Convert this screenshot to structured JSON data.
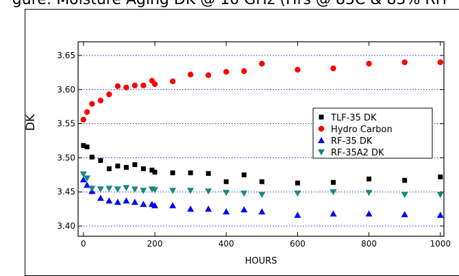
{
  "figure": {
    "title": "gure: Moisture Aging DK @ 10 GHz (Hrs @ 85C & 85% RH"
  },
  "chart_data": {
    "type": "scatter",
    "title": "gure: Moisture Aging DK @ 10 GHz (Hrs @ 85C & 85% RH",
    "xlabel": "HOURS",
    "ylabel": "DK",
    "xlim": [
      -15,
      1010
    ],
    "ylim": [
      3.385,
      3.67
    ],
    "xticks": [
      0,
      200,
      400,
      600,
      800,
      1000
    ],
    "yticks": [
      3.4,
      3.45,
      3.5,
      3.55,
      3.6,
      3.65
    ],
    "ytick_labels": [
      "3.40",
      "3.45",
      "3.50",
      "3.55",
      "3.60",
      "3.65"
    ],
    "grid": "horizontal-dotted",
    "legend_position": "right-center",
    "series": [
      {
        "name": "TLF-35 DK",
        "marker": "square",
        "color": "#000000",
        "points": [
          [
            0,
            3.518
          ],
          [
            10,
            3.516
          ],
          [
            24,
            3.501
          ],
          [
            48,
            3.496
          ],
          [
            72,
            3.484
          ],
          [
            96,
            3.488
          ],
          [
            120,
            3.486
          ],
          [
            144,
            3.49
          ],
          [
            168,
            3.484
          ],
          [
            192,
            3.482
          ],
          [
            200,
            3.479
          ],
          [
            250,
            3.478
          ],
          [
            300,
            3.478
          ],
          [
            350,
            3.477
          ],
          [
            400,
            3.465
          ],
          [
            450,
            3.475
          ],
          [
            500,
            3.465
          ],
          [
            600,
            3.463
          ],
          [
            700,
            3.464
          ],
          [
            800,
            3.469
          ],
          [
            900,
            3.467
          ],
          [
            1000,
            3.472
          ]
        ]
      },
      {
        "name": "Hydro Carbon",
        "marker": "circle",
        "color": "#ff0000",
        "points": [
          [
            0,
            3.556
          ],
          [
            10,
            3.567
          ],
          [
            24,
            3.579
          ],
          [
            48,
            3.584
          ],
          [
            72,
            3.593
          ],
          [
            96,
            3.605
          ],
          [
            120,
            3.603
          ],
          [
            144,
            3.606
          ],
          [
            168,
            3.606
          ],
          [
            192,
            3.613
          ],
          [
            200,
            3.608
          ],
          [
            250,
            3.612
          ],
          [
            300,
            3.622
          ],
          [
            350,
            3.621
          ],
          [
            400,
            3.626
          ],
          [
            450,
            3.627
          ],
          [
            500,
            3.638
          ],
          [
            600,
            3.629
          ],
          [
            700,
            3.631
          ],
          [
            800,
            3.638
          ],
          [
            900,
            3.64
          ],
          [
            1000,
            3.64
          ]
        ]
      },
      {
        "name": "RF-35 DK",
        "marker": "triangle-up",
        "color": "#0000ff",
        "points": [
          [
            0,
            3.468
          ],
          [
            10,
            3.46
          ],
          [
            24,
            3.451
          ],
          [
            48,
            3.441
          ],
          [
            72,
            3.437
          ],
          [
            96,
            3.435
          ],
          [
            120,
            3.437
          ],
          [
            144,
            3.435
          ],
          [
            168,
            3.432
          ],
          [
            192,
            3.432
          ],
          [
            200,
            3.43
          ],
          [
            250,
            3.43
          ],
          [
            300,
            3.425
          ],
          [
            350,
            3.425
          ],
          [
            400,
            3.421
          ],
          [
            450,
            3.424
          ],
          [
            500,
            3.421
          ],
          [
            600,
            3.416
          ],
          [
            700,
            3.418
          ],
          [
            800,
            3.418
          ],
          [
            900,
            3.417
          ],
          [
            1000,
            3.416
          ]
        ]
      },
      {
        "name": "RF-35A2 DK",
        "marker": "triangle-down",
        "color": "#178a7e",
        "points": [
          [
            0,
            3.476
          ],
          [
            10,
            3.47
          ],
          [
            24,
            3.455
          ],
          [
            48,
            3.454
          ],
          [
            72,
            3.455
          ],
          [
            96,
            3.454
          ],
          [
            120,
            3.456
          ],
          [
            144,
            3.454
          ],
          [
            168,
            3.452
          ],
          [
            192,
            3.454
          ],
          [
            200,
            3.453
          ],
          [
            250,
            3.452
          ],
          [
            300,
            3.452
          ],
          [
            350,
            3.451
          ],
          [
            400,
            3.449
          ],
          [
            450,
            3.448
          ],
          [
            500,
            3.446
          ],
          [
            600,
            3.448
          ],
          [
            700,
            3.45
          ],
          [
            800,
            3.449
          ],
          [
            900,
            3.446
          ],
          [
            1000,
            3.446
          ]
        ]
      }
    ]
  }
}
